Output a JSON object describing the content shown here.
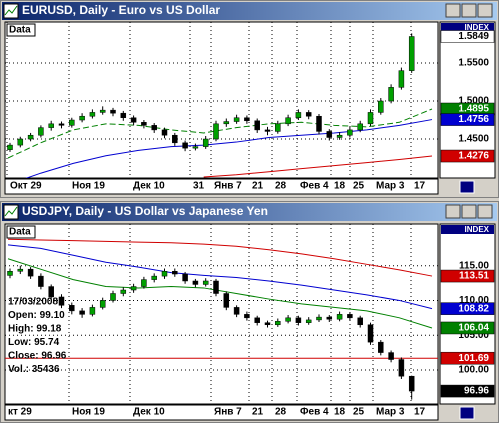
{
  "windows": [
    {
      "title": "EURUSD, Daily - Euro vs US Dollar",
      "panel_label": "Data",
      "index_label": "INDEX",
      "ylim": [
        1.3987,
        1.604
      ],
      "yticks": [
        {
          "value": 1.55,
          "label": "1.5500"
        },
        {
          "value": 1.5,
          "label": "1.5000"
        },
        {
          "value": 1.45,
          "label": "1.4500"
        }
      ],
      "candles": [
        [
          1.436,
          1.445,
          1.433,
          1.442
        ],
        [
          1.442,
          1.453,
          1.439,
          1.45
        ],
        [
          1.45,
          1.458,
          1.447,
          1.455
        ],
        [
          1.455,
          1.468,
          1.452,
          1.465
        ],
        [
          1.465,
          1.474,
          1.461,
          1.47
        ],
        [
          1.47,
          1.473,
          1.464,
          1.468
        ],
        [
          1.468,
          1.478,
          1.465,
          1.475
        ],
        [
          1.475,
          1.484,
          1.472,
          1.48
        ],
        [
          1.48,
          1.489,
          1.477,
          1.485
        ],
        [
          1.485,
          1.493,
          1.482,
          1.488
        ],
        [
          1.488,
          1.491,
          1.48,
          1.484
        ],
        [
          1.484,
          1.487,
          1.474,
          1.478
        ],
        [
          1.478,
          1.481,
          1.468,
          1.472
        ],
        [
          1.472,
          1.475,
          1.464,
          1.468
        ],
        [
          1.468,
          1.471,
          1.458,
          1.462
        ],
        [
          1.462,
          1.465,
          1.451,
          1.455
        ],
        [
          1.455,
          1.458,
          1.441,
          1.445
        ],
        [
          1.445,
          1.448,
          1.434,
          1.438
        ],
        [
          1.438,
          1.444,
          1.435,
          1.44
        ],
        [
          1.44,
          1.454,
          1.437,
          1.45
        ],
        [
          1.45,
          1.474,
          1.447,
          1.47
        ],
        [
          1.47,
          1.477,
          1.466,
          1.473
        ],
        [
          1.473,
          1.482,
          1.47,
          1.478
        ],
        [
          1.478,
          1.481,
          1.47,
          1.474
        ],
        [
          1.474,
          1.477,
          1.458,
          1.462
        ],
        [
          1.462,
          1.466,
          1.455,
          1.46
        ],
        [
          1.46,
          1.474,
          1.457,
          1.47
        ],
        [
          1.47,
          1.482,
          1.467,
          1.478
        ],
        [
          1.478,
          1.489,
          1.475,
          1.485
        ],
        [
          1.485,
          1.488,
          1.476,
          1.48
        ],
        [
          1.48,
          1.483,
          1.456,
          1.46
        ],
        [
          1.46,
          1.463,
          1.448,
          1.452
        ],
        [
          1.452,
          1.459,
          1.449,
          1.455
        ],
        [
          1.455,
          1.466,
          1.452,
          1.462
        ],
        [
          1.462,
          1.474,
          1.459,
          1.47
        ],
        [
          1.47,
          1.489,
          1.467,
          1.485
        ],
        [
          1.485,
          1.504,
          1.482,
          1.5
        ],
        [
          1.5,
          1.522,
          1.497,
          1.518
        ],
        [
          1.518,
          1.544,
          1.515,
          1.54
        ],
        [
          1.54,
          1.589,
          1.537,
          1.5849
        ]
      ],
      "up_color": "#00a000",
      "down_color": "#000000",
      "close_box_color": "#ffffff",
      "ma": [
        {
          "color": "#008000",
          "values": [
            1.425,
            1.445,
            1.462,
            1.47,
            1.468,
            1.462,
            1.458,
            1.465,
            1.47,
            1.472,
            1.468,
            1.466,
            1.472,
            1.4895
          ]
        },
        {
          "color": "#0000d0",
          "values": [
            1.39,
            1.405,
            1.418,
            1.428,
            1.435,
            1.44,
            1.442,
            1.446,
            1.452,
            1.455,
            1.458,
            1.462,
            1.468,
            1.4756
          ]
        },
        {
          "color": "#d00000",
          "values": [
            null,
            null,
            null,
            null,
            null,
            null,
            1.4,
            1.403,
            1.407,
            1.411,
            1.415,
            1.419,
            1.423,
            1.4276
          ]
        }
      ],
      "dates": [
        "Окт 29",
        "Ноя 19",
        "Дек 10",
        "31",
        "Янв 7",
        "21",
        "28",
        "Фев 4",
        "18",
        "25",
        "Мар 3",
        "17"
      ]
    },
    {
      "title": "USDJPY, Daily - US Dollar vs Japanese Yen",
      "panel_label": "Data",
      "index_label": "INDEX",
      "ylim": [
        95.1,
        121.0
      ],
      "yticks": [
        {
          "value": 115,
          "label": "115.00"
        },
        {
          "value": 110,
          "label": "110.00"
        },
        {
          "value": 105,
          "label": "105.00"
        },
        {
          "value": 100,
          "label": "100.00"
        }
      ],
      "candles": [
        [
          113.6,
          114.6,
          113.2,
          114.2
        ],
        [
          114.2,
          115.0,
          113.8,
          114.5
        ],
        [
          114.5,
          114.8,
          113.1,
          113.5
        ],
        [
          113.5,
          113.9,
          111.6,
          112.0
        ],
        [
          112.0,
          112.3,
          110.1,
          110.5
        ],
        [
          110.5,
          110.9,
          108.9,
          109.3
        ],
        [
          109.3,
          109.7,
          108.0,
          108.5
        ],
        [
          108.5,
          108.9,
          107.5,
          108.0
        ],
        [
          108.0,
          109.4,
          107.7,
          109.0
        ],
        [
          109.0,
          110.4,
          108.7,
          110.0
        ],
        [
          110.0,
          111.4,
          109.7,
          111.0
        ],
        [
          111.0,
          111.9,
          110.6,
          111.5
        ],
        [
          111.5,
          112.4,
          111.1,
          112.0
        ],
        [
          112.0,
          113.4,
          111.7,
          113.0
        ],
        [
          113.0,
          113.9,
          112.6,
          113.5
        ],
        [
          113.5,
          114.6,
          113.1,
          114.2
        ],
        [
          114.2,
          114.6,
          113.4,
          113.8
        ],
        [
          113.8,
          114.1,
          112.4,
          112.8
        ],
        [
          112.8,
          113.1,
          111.9,
          112.3
        ],
        [
          112.3,
          113.2,
          112.0,
          112.8
        ],
        [
          112.8,
          113.1,
          110.6,
          111.0
        ],
        [
          111.0,
          111.3,
          108.6,
          109.0
        ],
        [
          109.0,
          109.3,
          107.6,
          108.0
        ],
        [
          108.0,
          108.4,
          107.1,
          107.5
        ],
        [
          107.5,
          107.8,
          106.4,
          106.8
        ],
        [
          106.8,
          107.1,
          106.1,
          106.5
        ],
        [
          106.5,
          107.4,
          106.2,
          107.0
        ],
        [
          107.0,
          107.9,
          106.7,
          107.5
        ],
        [
          107.5,
          107.8,
          106.4,
          106.8
        ],
        [
          106.8,
          107.6,
          106.5,
          107.2
        ],
        [
          107.2,
          108.0,
          106.9,
          107.6
        ],
        [
          107.6,
          107.9,
          106.9,
          107.3
        ],
        [
          107.3,
          108.4,
          107.0,
          108.0
        ],
        [
          108.0,
          108.3,
          107.1,
          107.5
        ],
        [
          107.5,
          107.8,
          106.1,
          106.5
        ],
        [
          106.5,
          106.8,
          103.6,
          104.0
        ],
        [
          104.0,
          104.3,
          102.1,
          102.5
        ],
        [
          102.5,
          102.8,
          101.1,
          101.5
        ],
        [
          101.5,
          101.8,
          98.7,
          99.1
        ],
        [
          99.1,
          99.18,
          95.74,
          96.96
        ]
      ],
      "up_color": "#00a000",
      "down_color": "#000000",
      "close_box_color": "#000000",
      "ma": [
        {
          "color": "#d00000",
          "values": [
            118.8,
            118.7,
            118.6,
            118.5,
            118.4,
            118.3,
            118.1,
            117.8,
            117.3,
            116.7,
            116.0,
            115.2,
            114.4,
            113.51
          ]
        },
        {
          "color": "#0000d0",
          "values": [
            118.0,
            117.5,
            116.5,
            115.5,
            114.8,
            114.0,
            113.6,
            113.3,
            112.8,
            112.2,
            111.5,
            110.8,
            110.0,
            108.82
          ]
        },
        {
          "color": "#008000",
          "values": [
            116.0,
            114.5,
            113.0,
            112.0,
            111.8,
            112.0,
            111.8,
            111.0,
            110.2,
            109.5,
            109.0,
            108.5,
            107.5,
            106.04
          ]
        }
      ],
      "level": {
        "value": 101.69,
        "color": "#d00000"
      },
      "info": [
        "17/03/2008",
        "Open: 99.10",
        "High: 99.18",
        "Low: 95.74",
        "Close: 96.96",
        "Vol.: 35436"
      ],
      "dates": [
        "кт 29",
        "Ноя 19",
        "Дек 10",
        "Янв 7",
        "21",
        "28",
        "Фев 4",
        "18",
        "25",
        "Мар 3",
        "17"
      ]
    }
  ]
}
